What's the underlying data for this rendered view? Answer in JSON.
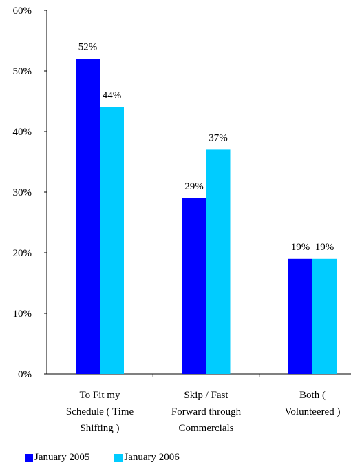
{
  "chart_data": {
    "type": "bar",
    "categories": [
      [
        "To Fit my",
        "Schedule ( Time",
        "Shifting )"
      ],
      [
        "Skip / Fast",
        "Forward through",
        "Commercials"
      ],
      [
        "Both (",
        "Volunteered )"
      ]
    ],
    "series": [
      {
        "name": "January 2005",
        "color": "#0000ff",
        "values": [
          52,
          29,
          19
        ]
      },
      {
        "name": "January 2006",
        "color": "#00ccff",
        "values": [
          44,
          37,
          19
        ]
      }
    ],
    "ylim": [
      0,
      60
    ],
    "yticks": [
      0,
      10,
      20,
      30,
      40,
      50,
      60
    ],
    "ytick_labels": [
      "0%",
      "10%",
      "20%",
      "30%",
      "40%",
      "50%",
      "60%"
    ],
    "value_suffix": "%",
    "legend_position": "bottom-left",
    "grid": false
  }
}
